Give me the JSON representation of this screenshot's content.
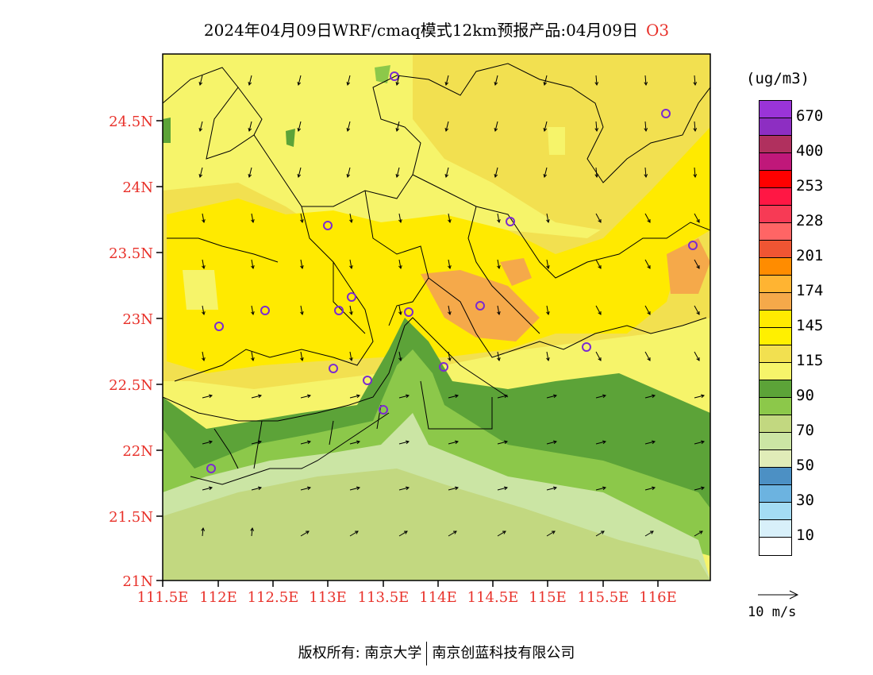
{
  "title": {
    "text": "2024年04月09日WRF/cmaq模式12km预报产品:04月09日",
    "pollutant": "O3"
  },
  "axes": {
    "lat_labels": [
      "24.5N",
      "24N",
      "23.5N",
      "23N",
      "22.5N",
      "22N",
      "21.5N",
      "21N"
    ],
    "lon_labels": [
      "111.5E",
      "112E",
      "112.5E",
      "113E",
      "113.5E",
      "114E",
      "114.5E",
      "115E",
      "115.5E",
      "116E"
    ],
    "label_color": "#e8312a"
  },
  "legend": {
    "unit": "(ug/m3)",
    "colors": [
      "#9a34d8",
      "#8d2ec2",
      "#b0305e",
      "#c0187a",
      "#ff0000",
      "#ff1744",
      "#f73a55",
      "#ff6565",
      "#ef5533",
      "#ff8c00",
      "#ffb432",
      "#f5a94a",
      "#ffea00",
      "#fff000",
      "#f2e050",
      "#f6f46a",
      "#5ca338",
      "#8cc84a",
      "#c2d880",
      "#cbe5a4",
      "#e0ecb8",
      "#4c90c4",
      "#6cb3e0",
      "#a4dcf4",
      "#d8f0fa",
      "#ffffff"
    ],
    "ticks": [
      "670",
      "400",
      "253",
      "228",
      "201",
      "174",
      "145",
      "115",
      "90",
      "70",
      "50",
      "30",
      "10"
    ]
  },
  "wind_reference": {
    "label": "10 m/s"
  },
  "footer": {
    "left": "版权所有: 南京大学",
    "right": "南京创蓝科技有限公司"
  }
}
